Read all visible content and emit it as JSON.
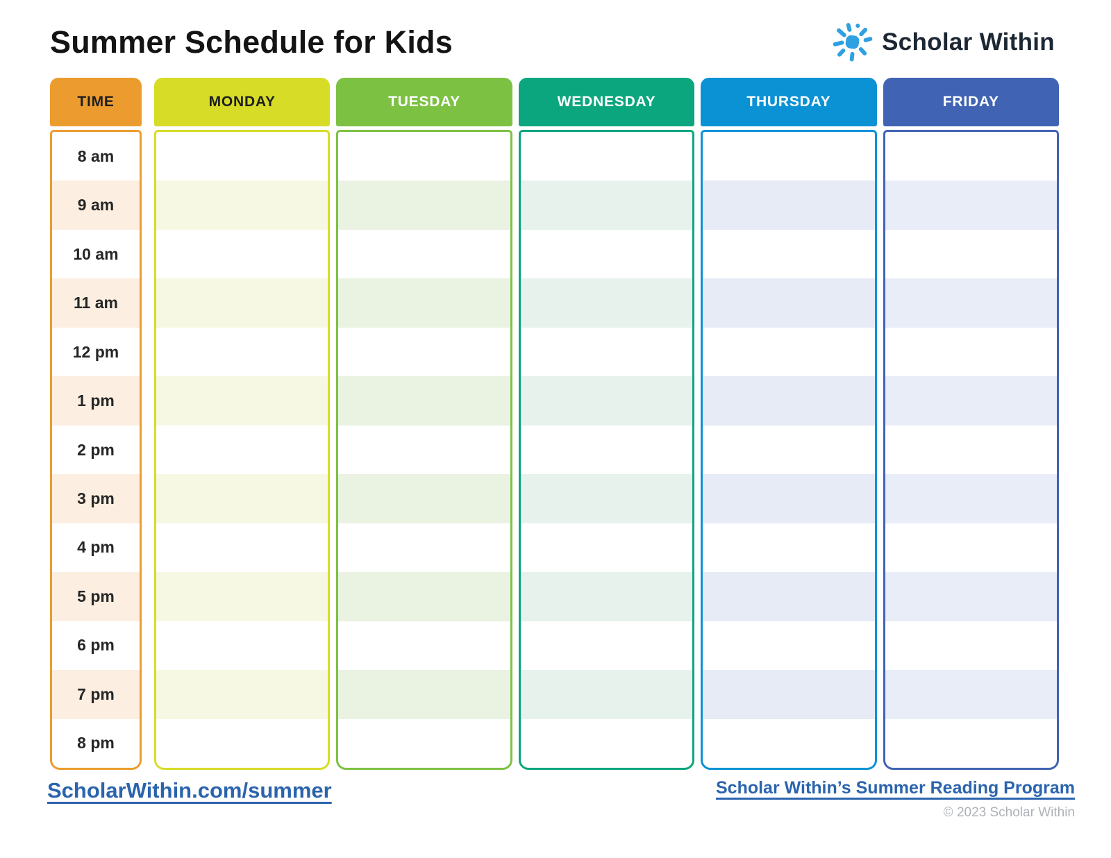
{
  "header": {
    "title": "Summer Schedule for Kids",
    "brand": "Scholar Within"
  },
  "brand_colors": {
    "sun_icon": "#2FA0E2",
    "brand_text": "#1C2733"
  },
  "schedule": {
    "row_count": 13,
    "time_column": {
      "header": "TIME",
      "color": "#EC9C2F",
      "tint": "#FCEFE1",
      "header_text": "#1E1E1E",
      "times": [
        "8 am",
        "9 am",
        "10 am",
        "11 am",
        "12 pm",
        "1 pm",
        "2 pm",
        "3 pm",
        "4 pm",
        "5 pm",
        "6 pm",
        "7 pm",
        "8 pm"
      ]
    },
    "days": [
      {
        "label": "MONDAY",
        "color": "#D7DC26",
        "tint": "#F7F8E3",
        "header_text": "#1E1E1E"
      },
      {
        "label": "TUESDAY",
        "color": "#7DC143",
        "tint": "#EAF2E2",
        "header_text": "#FFFFFF"
      },
      {
        "label": "WEDNESDAY",
        "color": "#0CA67E",
        "tint": "#E7F2EC",
        "header_text": "#FFFFFF"
      },
      {
        "label": "THURSDAY",
        "color": "#0B92D5",
        "tint": "#E6EBF6",
        "header_text": "#FFFFFF"
      },
      {
        "label": "FRIDAY",
        "color": "#4063B3",
        "tint": "#E9EDF7",
        "header_text": "#FFFFFF"
      }
    ]
  },
  "footer": {
    "left_link": "ScholarWithin.com/summer",
    "right_link": "Scholar Within’s Summer Reading Program",
    "copyright": "© 2023 Scholar Within",
    "link_color": "#2B64AD"
  }
}
